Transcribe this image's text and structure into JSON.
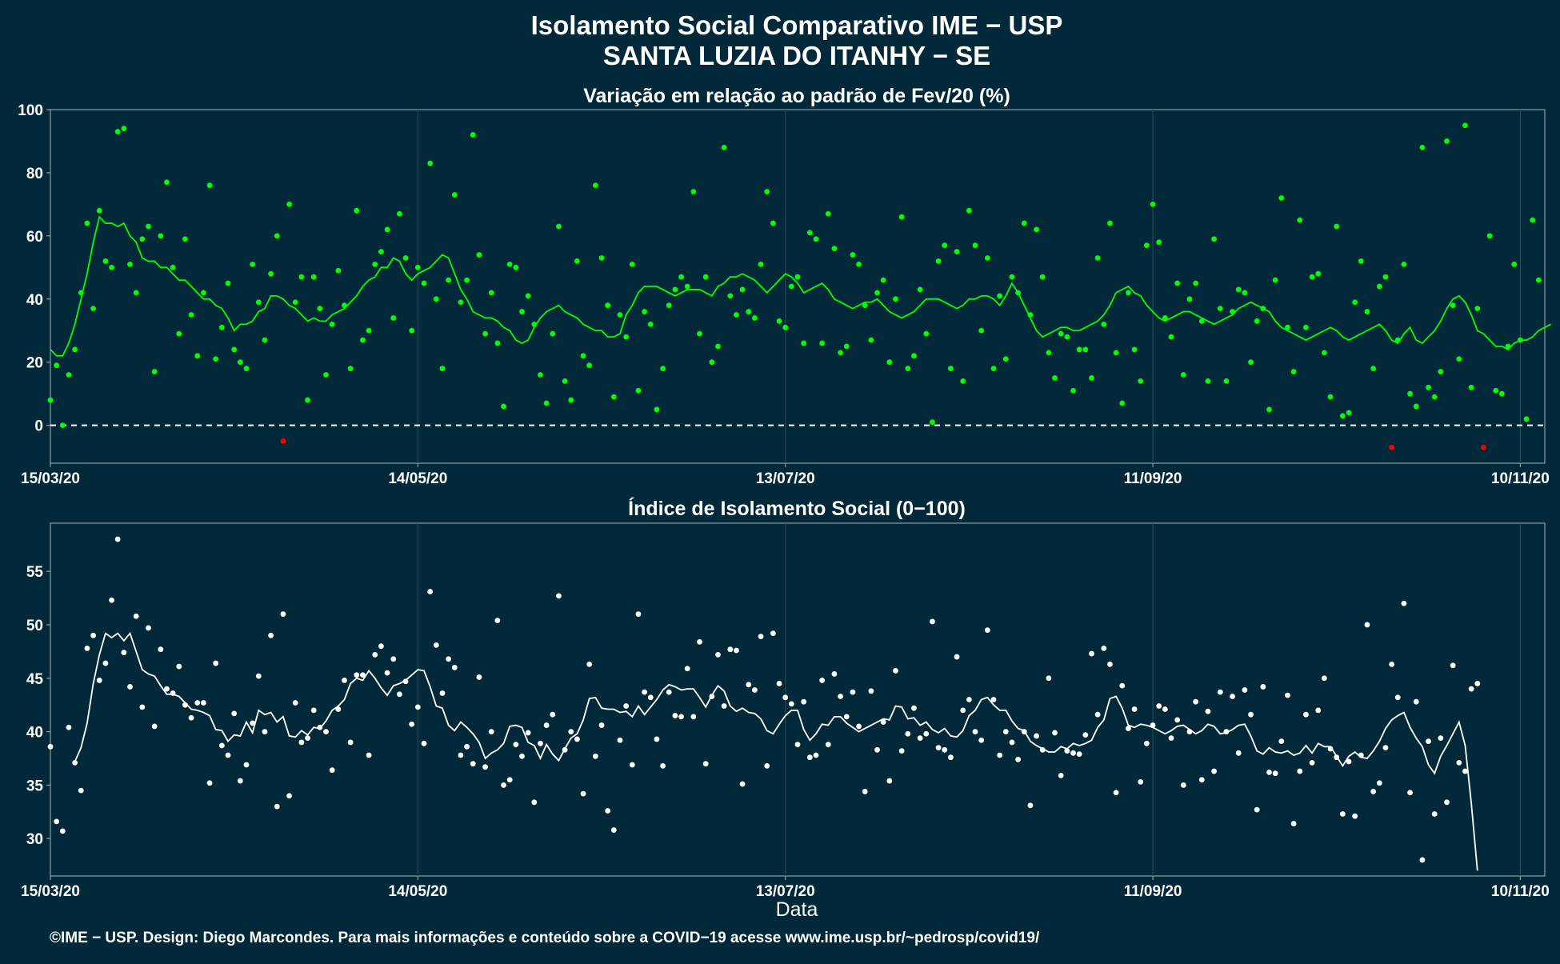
{
  "header": {
    "title_line1": "Isolamento Social Comparativo IME − USP",
    "title_line2": "SANTA LUZIA DO ITANHY − SE"
  },
  "caption": "©IME − USP. Design: Diego Marcondes. Para mais informações e conteúdo sobre a COVID−19 acesse www.ime.usp.br/~pedrosp/covid19/",
  "colors": {
    "background": "#02293a",
    "positive": "#00ff00",
    "negative": "#ff0000",
    "index_series": "#ffffff",
    "grid": "#1f4a55",
    "axis": "#8a9ea5"
  },
  "chart_data": [
    {
      "type": "scatter",
      "title": "Variação em relação ao padrão de Fev/20 (%)",
      "xlabel": "",
      "ylabel": "",
      "x_start_date": "15/03/20",
      "x_end_date": "14/11/20",
      "x_tick_labels": [
        "15/03/20",
        "14/05/20",
        "13/07/20",
        "11/09/20",
        "10/11/20"
      ],
      "ylim": [
        -12,
        100
      ],
      "y_ticks": [
        0,
        20,
        40,
        60,
        80,
        100
      ],
      "reference_line": 0,
      "grid": true,
      "series": [
        {
          "role": "daily points",
          "values": [
            8,
            19,
            0,
            16,
            24,
            42,
            64,
            37,
            68,
            52,
            50,
            93,
            94,
            51,
            42,
            59,
            63,
            17,
            60,
            77,
            50,
            29,
            59,
            35,
            22,
            42,
            76,
            21,
            31,
            45,
            24,
            20,
            18,
            51,
            39,
            27,
            48,
            60,
            -5,
            70,
            39,
            47,
            8,
            47,
            37,
            16,
            32,
            49,
            38,
            18,
            68,
            27,
            30,
            51,
            55,
            62,
            34,
            67,
            53,
            30,
            50,
            45,
            83,
            40,
            18,
            46,
            73,
            39,
            46,
            92,
            54,
            29,
            42,
            26,
            6,
            51,
            50,
            36,
            41,
            32,
            16,
            7,
            29,
            63,
            14,
            8,
            52,
            22,
            19,
            76,
            53,
            38,
            9,
            35,
            28,
            51,
            11,
            36,
            32,
            5,
            18,
            38,
            43,
            47,
            44,
            74,
            29,
            47,
            20,
            25,
            88,
            41,
            35,
            43,
            36,
            34,
            51,
            74,
            64,
            33,
            31,
            44,
            47,
            26,
            61,
            59,
            26,
            67,
            56,
            23,
            25,
            54,
            51,
            38,
            27,
            42,
            46,
            20,
            40,
            66,
            18,
            22,
            43,
            29,
            1,
            52,
            57,
            18,
            55,
            14,
            68,
            57,
            30,
            53,
            18,
            41,
            21,
            47,
            42,
            64,
            35,
            62,
            47,
            23,
            15,
            29,
            28,
            11,
            24,
            24,
            15,
            53,
            32,
            64,
            23,
            7,
            42,
            24,
            14,
            57,
            70,
            58,
            34,
            28,
            45,
            16,
            40,
            45,
            33,
            14,
            59,
            37,
            14,
            36,
            43,
            42,
            20,
            33,
            37,
            5,
            46,
            72,
            31,
            17,
            65,
            31,
            47,
            48,
            23,
            9,
            63,
            3,
            4,
            39,
            52,
            36,
            18,
            44,
            47,
            -7,
            27,
            51,
            10,
            6,
            88,
            12,
            9,
            17,
            90,
            38,
            21,
            95,
            12,
            37,
            -7,
            60,
            11,
            10,
            25,
            51,
            27,
            2,
            65,
            46
          ],
          "negative_color_when_below": 0
        },
        {
          "role": "moving average",
          "values": [
            24,
            22,
            22,
            26,
            32,
            40,
            48,
            58,
            66,
            64,
            64,
            63,
            64,
            60,
            58,
            53,
            52,
            52,
            50,
            50,
            48,
            46,
            46,
            44,
            42,
            40,
            40,
            38,
            37,
            34,
            30,
            32,
            32,
            33,
            36,
            37,
            41,
            41,
            40,
            38,
            37,
            35,
            33,
            34,
            33,
            33,
            35,
            36,
            37,
            39,
            41,
            44,
            46,
            47,
            50,
            50,
            53,
            52,
            48,
            46,
            48,
            49,
            50,
            52,
            54,
            53,
            48,
            43,
            40,
            36,
            35,
            34,
            34,
            33,
            31,
            30,
            27,
            26,
            27,
            31,
            34,
            36,
            37,
            38,
            36,
            35,
            34,
            32,
            31,
            30,
            30,
            28,
            28,
            29,
            35,
            38,
            42,
            44,
            44,
            44,
            43,
            42,
            41,
            42,
            43,
            43,
            43,
            42,
            41,
            44,
            45,
            47,
            47,
            48,
            47,
            46,
            44,
            42,
            44,
            46,
            48,
            47,
            45,
            42,
            43,
            44,
            45,
            43,
            40,
            39,
            38,
            37,
            38,
            39,
            39,
            40,
            38,
            36,
            35,
            34,
            35,
            36,
            38,
            40,
            40,
            40,
            39,
            38,
            37,
            38,
            40,
            40,
            41,
            41,
            40,
            38,
            41,
            45,
            42,
            38,
            34,
            30,
            28,
            29,
            30,
            31,
            31,
            30,
            30,
            31,
            32,
            33,
            35,
            38,
            42,
            43,
            44,
            42,
            41,
            38,
            36,
            34,
            33,
            34,
            35,
            36,
            36,
            35,
            34,
            33,
            32,
            33,
            34,
            35,
            37,
            38,
            39,
            38,
            37,
            36,
            33,
            31,
            30,
            29,
            28,
            27,
            28,
            29,
            30,
            31,
            30,
            28,
            27,
            28,
            29,
            30,
            31,
            32,
            30,
            27,
            26,
            29,
            31,
            27,
            26,
            28,
            30,
            33,
            37,
            40,
            41,
            39,
            35,
            30,
            29,
            27,
            25,
            25,
            24,
            26,
            27,
            27,
            28,
            30,
            31,
            32
          ]
        }
      ]
    },
    {
      "type": "scatter",
      "title": "Índice de Isolamento Social (0−100)",
      "xlabel": "Data",
      "ylabel": "",
      "x_start_date": "15/03/20",
      "x_end_date": "14/11/20",
      "x_tick_labels": [
        "15/03/20",
        "14/05/20",
        "13/07/20",
        "11/09/20",
        "10/11/20"
      ],
      "ylim": [
        26.5,
        59.5
      ],
      "y_ticks": [
        30,
        35,
        40,
        45,
        50,
        55
      ],
      "grid": true,
      "series": [
        {
          "role": "daily points",
          "values": [
            38.6,
            31.6,
            30.7,
            40.4,
            37.1,
            34.5,
            47.8,
            49,
            44.8,
            46.4,
            52.3,
            58,
            47.4,
            44.2,
            50.8,
            42.3,
            49.7,
            40.5,
            47.7,
            44,
            43.6,
            46.1,
            42.5,
            41.3,
            42.7,
            42.7,
            35.2,
            46.4,
            38.7,
            37.8,
            41.7,
            35.4,
            36.9,
            40.8,
            45.2,
            40,
            49,
            33,
            51,
            34,
            42.7,
            39,
            39.4,
            42,
            40.4,
            40,
            36.4,
            42.1,
            44.8,
            39,
            45.3,
            45.3,
            37.8,
            47.2,
            48,
            45.5,
            46.8,
            43.5,
            44.7,
            40.7,
            42.3,
            38.9,
            53.1,
            48.1,
            43.6,
            46.8,
            46,
            37.8,
            38.6,
            37,
            45.1,
            36.7,
            40,
            50.4,
            35,
            35.5,
            38.8,
            37.7,
            39.9,
            33.4,
            38.9,
            40.6,
            41.6,
            52.7,
            38.3,
            40,
            39.3,
            34.2,
            46.3,
            37.7,
            40.6,
            32.6,
            30.8,
            39.2,
            42.4,
            36.9,
            51,
            43.7,
            43.2,
            39.3,
            36.8,
            43.7,
            41.5,
            41.4,
            45.9,
            41.4,
            48.4,
            37,
            43.3,
            47.2,
            42.4,
            47.7,
            47.6,
            35.1,
            44.4,
            43.9,
            48.9,
            36.8,
            49.2,
            44.5,
            43.2,
            42.6,
            38.8,
            42.8,
            37.6,
            37.8,
            44.8,
            38.8,
            45.4,
            43.3,
            41.4,
            43.7,
            40.5,
            34.4,
            43.8,
            38.3,
            40.9,
            35.4,
            45.7,
            38.2,
            39.8,
            42.2,
            39.4,
            39.8,
            50.3,
            38.5,
            38.3,
            37.6,
            47,
            42,
            43,
            40,
            39.2,
            49.5,
            43,
            37.8,
            40,
            39,
            37.4,
            40,
            33.1,
            39.6,
            38.3,
            45,
            39.9,
            35.9,
            38.2,
            38,
            37.9,
            39.7,
            47.3,
            41.6,
            47.8,
            46.3,
            34.3,
            44.3,
            40.3,
            42.1,
            35.3,
            38.9,
            40.6,
            42.4,
            42.1,
            39.4,
            41.1,
            35,
            40,
            42.8,
            35.5,
            41.9,
            36.3,
            43.7,
            40,
            43.3,
            38,
            43.9,
            41.6,
            32.7,
            44.2,
            36.2,
            36.1,
            39.1,
            43.4,
            31.4,
            36.3,
            41.6,
            37.1,
            42,
            45,
            38.4,
            37.6,
            32.3,
            37.2,
            32.1,
            37.8,
            50,
            34.4,
            35.2,
            38.5,
            46.3,
            43.2,
            52,
            34.3,
            42.8,
            28,
            39.1,
            32.3,
            39.4,
            33.4,
            46.2,
            37.1,
            36.3,
            44,
            44.5
          ],
          "moving_average": [
            null,
            null,
            null,
            null,
            37.2,
            38.5,
            40.8,
            44.5,
            47.2,
            49.2,
            48.8,
            49.2,
            48.5,
            49.2,
            47.5,
            45.8,
            45.4,
            45.2,
            44.3,
            43.5,
            43.5,
            43.3,
            42.7,
            42.1,
            42,
            41.8,
            41.5,
            40.2,
            40.1,
            39.1,
            39.7,
            39.6,
            40.9,
            39.9,
            42,
            41.6,
            41.8,
            40.9,
            41.4,
            39.6,
            39.5,
            40.1,
            39.7,
            40.4,
            40.3,
            41,
            42,
            42.4,
            43,
            44.5,
            45,
            44.8,
            45.7,
            45,
            44.1,
            43.4,
            44.3,
            44.5,
            44.8,
            45.3,
            45.8,
            45.7,
            44.2,
            42.4,
            42.2,
            40.6,
            40.1,
            40.9,
            40.4,
            39.8,
            39,
            37.5,
            38,
            38.3,
            38.9,
            40.5,
            40.6,
            40.4,
            39,
            38.7,
            37.5,
            38.8,
            37.9,
            37.3,
            38.4,
            39.4,
            39.8,
            41.1,
            43.1,
            43.2,
            42.2,
            42.1,
            42.1,
            41.8,
            41.9,
            41.4,
            42.4,
            41.6,
            42.3,
            43,
            43.9,
            44.4,
            44.2,
            43.9,
            44,
            44,
            43.2,
            42.3,
            43.4,
            44.3,
            43.8,
            42.4,
            41.9,
            42.2,
            41.8,
            41.7,
            41.2,
            40.1,
            39.8,
            40.7,
            41.5,
            42,
            42,
            40.2,
            39.2,
            39.8,
            40.7,
            40.6,
            41.4,
            41.4,
            40.8,
            40.4,
            40,
            40.3,
            40.6,
            40.9,
            41.2,
            41.1,
            42.4,
            42.3,
            41.2,
            41.3,
            40.6,
            40.9,
            40.2,
            39.9,
            40.3,
            39.6,
            39.5,
            40.1,
            41.5,
            42,
            43,
            43.2,
            42.5,
            42,
            42,
            41,
            40.3,
            40.1,
            39.1,
            38.7,
            38.4,
            38.1,
            38.1,
            38.6,
            38.4,
            38.9,
            38.7,
            38.9,
            39.2,
            40.4,
            41.1,
            43.1,
            43.3,
            42.2,
            40.6,
            40.4,
            40.7,
            40.6,
            40.4,
            40.1,
            39.8,
            40.1,
            40.5,
            40.6,
            40.2,
            39.8,
            40.1,
            40.7,
            40.5,
            39.8,
            39.9,
            40.2,
            40.6,
            40.7,
            39.6,
            38.2,
            37.9,
            38.5,
            38.1,
            38,
            38.2,
            37.8,
            38,
            38.7,
            38,
            38.9,
            38.6,
            38.6,
            37.7,
            36.8,
            37.7,
            38.1,
            37.6,
            37.5,
            38.2,
            39.1,
            40.3,
            41.1,
            41.5,
            41.8,
            40.4,
            39.4,
            38.6,
            36.9,
            36.1,
            37.7,
            38.7,
            39.8,
            40.9,
            38.7,
            33.3,
            27
          ]
        }
      ]
    }
  ]
}
